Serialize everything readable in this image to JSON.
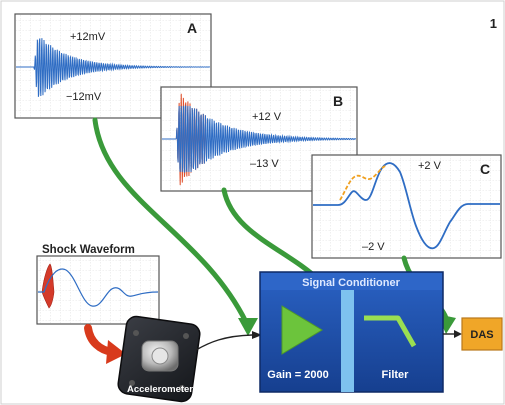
{
  "figure": {
    "number": "1"
  },
  "panels": {
    "a": {
      "letter": "A",
      "top_label": "+12mV",
      "bottom_label": "−12mV"
    },
    "b": {
      "letter": "B",
      "top_label": "+12 V",
      "bottom_label": "–13 V"
    },
    "c": {
      "letter": "C",
      "top_label": "+2 V",
      "bottom_label": "–2 V"
    }
  },
  "shock": {
    "title": "Shock Waveform"
  },
  "accelerometer": {
    "label": "Accelerometer"
  },
  "conditioner": {
    "title": "Signal Conditioner",
    "gain_label": "Gain = 2000",
    "filter_label": "Filter"
  },
  "das": {
    "label": "DAS"
  },
  "colors": {
    "trace_blue": "#2f6dc4",
    "trace_red": "#e0502c",
    "trace_orange": "#f0a020",
    "arrow_green": "#3a9a3a",
    "arrow_red": "#d83a1c",
    "conditioner_blue": "#1f4fa8",
    "amp_green": "#6cc43c",
    "das_orange": "#f0a628"
  }
}
